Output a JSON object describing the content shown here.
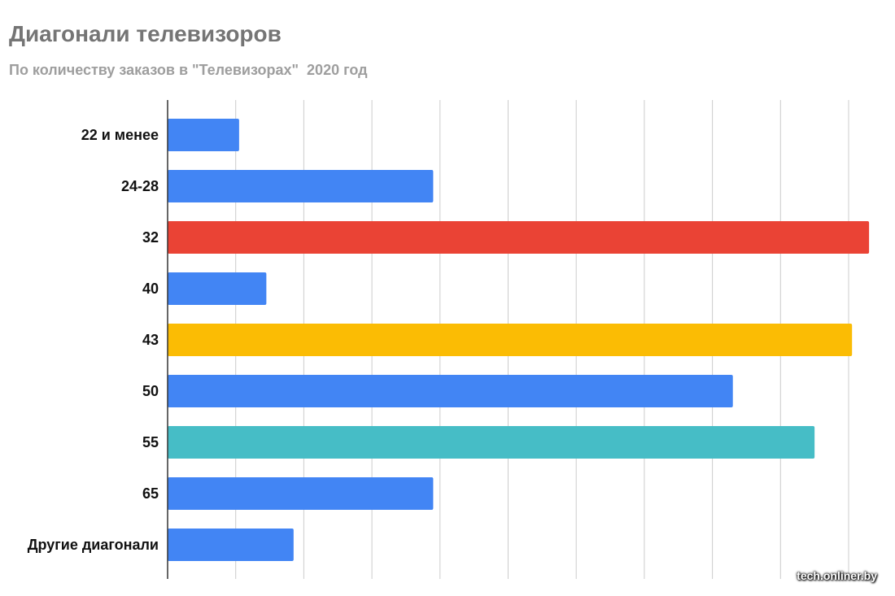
{
  "chart_data": {
    "type": "bar",
    "orientation": "horizontal",
    "title": "Диагонали телевизоров",
    "subtitle": "По количеству заказов в \"Телевизорах\"  2020 год",
    "categories": [
      "22 и менее",
      "24-28",
      "32",
      "40",
      "43",
      "50",
      "55",
      "65",
      "Другие диагонали"
    ],
    "values": [
      1.05,
      3.9,
      10.3,
      1.45,
      10.05,
      8.3,
      9.5,
      3.9,
      1.85
    ],
    "colors": [
      "#4285f4",
      "#4285f4",
      "#ea4335",
      "#4285f4",
      "#fbbc04",
      "#4285f4",
      "#46bdc6",
      "#4285f4",
      "#4285f4"
    ],
    "xlim": [
      0,
      10.5
    ],
    "x_tick_labels_visible": false,
    "grid": true
  },
  "watermark": "tech.onliner.by"
}
